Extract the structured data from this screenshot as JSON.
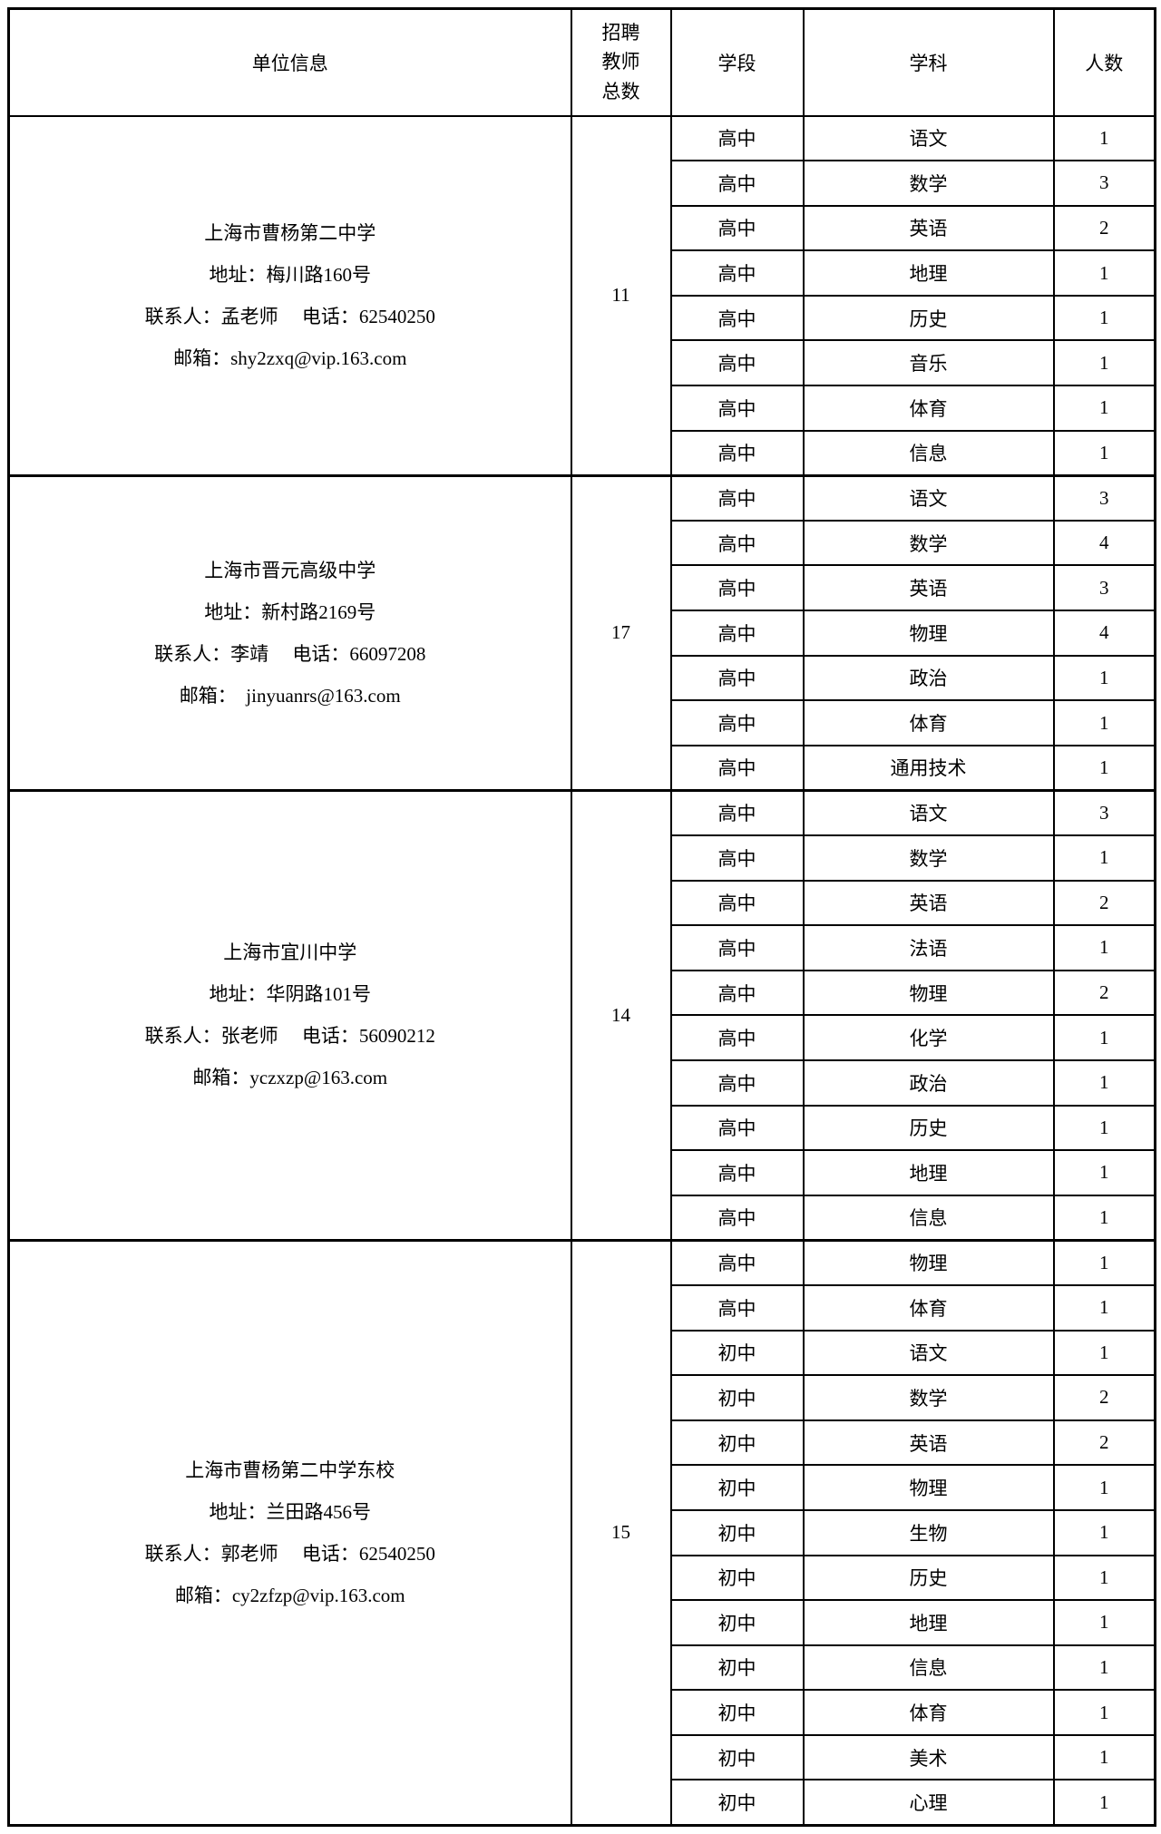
{
  "table": {
    "headers": {
      "unit_info": "单位信息",
      "total_recruited": "招聘\n教师\n总数",
      "stage": "学段",
      "subject": "学科",
      "count": "人数"
    },
    "blocks": [
      {
        "unit_lines": [
          "上海市曹杨第二中学",
          "地址：梅川路160号",
          "联系人：孟老师　 电话：62540250",
          "邮箱：shy2zxq@vip.163.com"
        ],
        "total": "11",
        "rows": [
          {
            "stage": "高中",
            "subject": "语文",
            "count": "1"
          },
          {
            "stage": "高中",
            "subject": "数学",
            "count": "3"
          },
          {
            "stage": "高中",
            "subject": "英语",
            "count": "2"
          },
          {
            "stage": "高中",
            "subject": "地理",
            "count": "1"
          },
          {
            "stage": "高中",
            "subject": "历史",
            "count": "1"
          },
          {
            "stage": "高中",
            "subject": "音乐",
            "count": "1"
          },
          {
            "stage": "高中",
            "subject": "体育",
            "count": "1"
          },
          {
            "stage": "高中",
            "subject": "信息",
            "count": "1"
          }
        ]
      },
      {
        "unit_lines": [
          "上海市晋元高级中学",
          "地址：新村路2169号",
          "联系人：李靖　 电话：66097208",
          "邮箱：　jinyuanrs@163.com"
        ],
        "total": "17",
        "rows": [
          {
            "stage": "高中",
            "subject": "语文",
            "count": "3"
          },
          {
            "stage": "高中",
            "subject": "数学",
            "count": "4"
          },
          {
            "stage": "高中",
            "subject": "英语",
            "count": "3"
          },
          {
            "stage": "高中",
            "subject": "物理",
            "count": "4"
          },
          {
            "stage": "高中",
            "subject": "政治",
            "count": "1"
          },
          {
            "stage": "高中",
            "subject": "体育",
            "count": "1"
          },
          {
            "stage": "高中",
            "subject": "通用技术",
            "count": "1"
          }
        ]
      },
      {
        "unit_lines": [
          "上海市宜川中学",
          "地址：华阴路101号",
          "联系人：张老师　 电话：56090212",
          "邮箱：yczxzp@163.com"
        ],
        "total": "14",
        "rows": [
          {
            "stage": "高中",
            "subject": "语文",
            "count": "3"
          },
          {
            "stage": "高中",
            "subject": "数学",
            "count": "1"
          },
          {
            "stage": "高中",
            "subject": "英语",
            "count": "2"
          },
          {
            "stage": "高中",
            "subject": "法语",
            "count": "1"
          },
          {
            "stage": "高中",
            "subject": "物理",
            "count": "2"
          },
          {
            "stage": "高中",
            "subject": "化学",
            "count": "1"
          },
          {
            "stage": "高中",
            "subject": "政治",
            "count": "1"
          },
          {
            "stage": "高中",
            "subject": "历史",
            "count": "1"
          },
          {
            "stage": "高中",
            "subject": "地理",
            "count": "1"
          },
          {
            "stage": "高中",
            "subject": "信息",
            "count": "1"
          }
        ]
      },
      {
        "unit_lines": [
          "上海市曹杨第二中学东校",
          "地址：兰田路456号",
          "联系人：郭老师　 电话：62540250",
          "邮箱：cy2zfzp@vip.163.com"
        ],
        "total": "15",
        "rows": [
          {
            "stage": "高中",
            "subject": "物理",
            "count": "1"
          },
          {
            "stage": "高中",
            "subject": "体育",
            "count": "1"
          },
          {
            "stage": "初中",
            "subject": "语文",
            "count": "1"
          },
          {
            "stage": "初中",
            "subject": "数学",
            "count": "2"
          },
          {
            "stage": "初中",
            "subject": "英语",
            "count": "2"
          },
          {
            "stage": "初中",
            "subject": "物理",
            "count": "1"
          },
          {
            "stage": "初中",
            "subject": "生物",
            "count": "1"
          },
          {
            "stage": "初中",
            "subject": "历史",
            "count": "1"
          },
          {
            "stage": "初中",
            "subject": "地理",
            "count": "1"
          },
          {
            "stage": "初中",
            "subject": "信息",
            "count": "1"
          },
          {
            "stage": "初中",
            "subject": "体育",
            "count": "1"
          },
          {
            "stage": "初中",
            "subject": "美术",
            "count": "1"
          },
          {
            "stage": "初中",
            "subject": "心理",
            "count": "1"
          }
        ]
      }
    ]
  }
}
